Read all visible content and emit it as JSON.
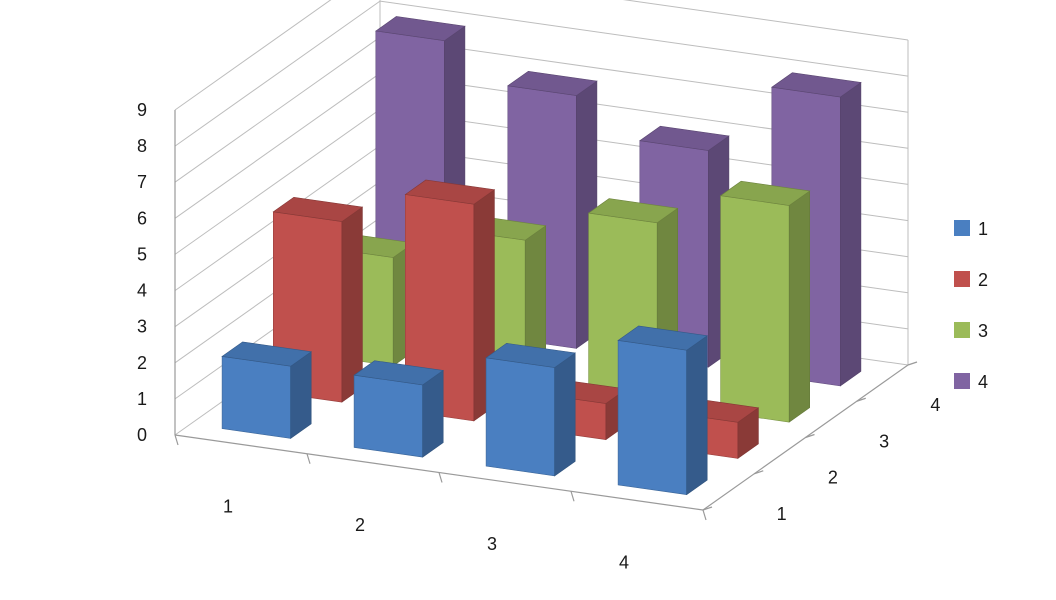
{
  "chart_data": {
    "type": "bar",
    "subtype": "3d-column",
    "categories": [
      "1",
      "2",
      "3",
      "4"
    ],
    "depth_labels": [
      "1",
      "2",
      "3",
      "4"
    ],
    "series": [
      {
        "name": "1",
        "color": "#4a7fc1",
        "values": [
          2,
          2,
          3,
          4
        ]
      },
      {
        "name": "2",
        "color": "#c0504d",
        "values": [
          5,
          6,
          1,
          1
        ]
      },
      {
        "name": "3",
        "color": "#9bbb59",
        "values": [
          3,
          4,
          5,
          6
        ]
      },
      {
        "name": "4",
        "color": "#8064a2",
        "values": [
          8,
          7,
          6,
          8
        ]
      }
    ],
    "ylim": [
      0,
      9
    ],
    "yticks": [
      "0",
      "1",
      "2",
      "3",
      "4",
      "5",
      "6",
      "7",
      "8",
      "9"
    ],
    "grid": true,
    "legend_position": "right",
    "title": "",
    "xlabel": "",
    "ylabel": ""
  }
}
